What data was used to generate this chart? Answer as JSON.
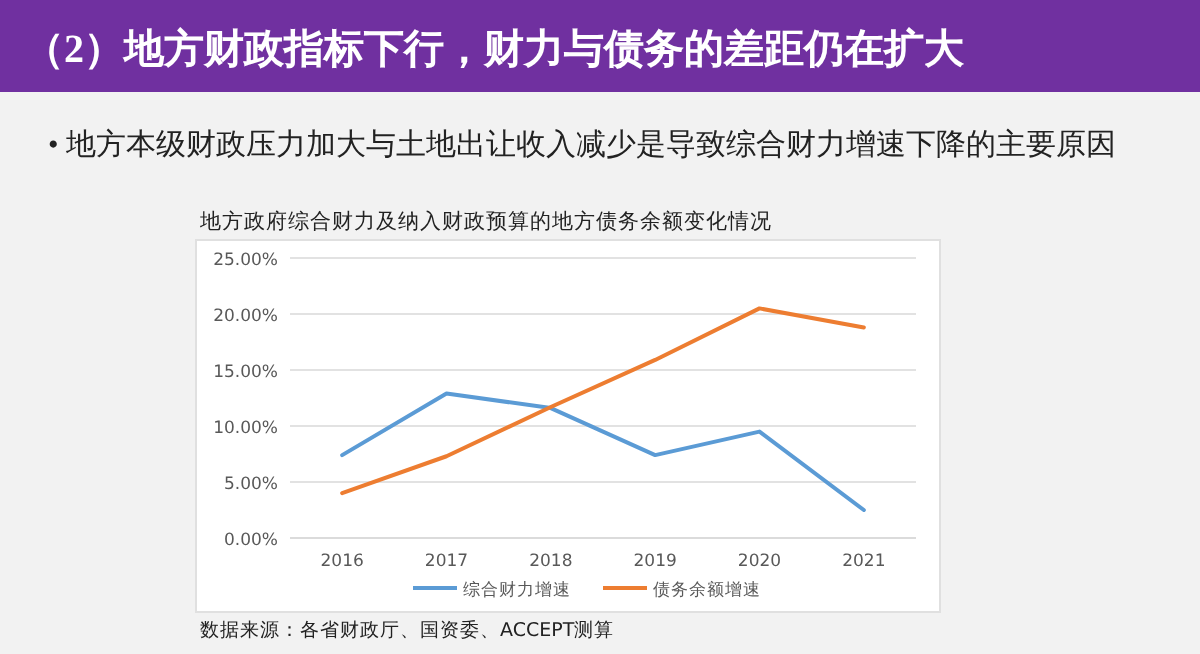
{
  "chart_data": {
    "type": "line",
    "title": "地方政府综合财力及纳入财政预算的地方债务余额变化情况",
    "annotations": [
      "（2）地方财政指标下行，财力与债务的差距仍在扩大",
      "• 地方本级财政压力加大与土地出让收入减少是导致综合财力增速下降的主要原因",
      "数据来源：各省财政厅、国资委、ACCEPT测算"
    ],
    "categories": [
      "2016",
      "2017",
      "2018",
      "2019",
      "2020",
      "2021"
    ],
    "series": [
      {
        "name": "综合财力增速",
        "color": "#5b9bd5",
        "values": [
          7.4,
          12.9,
          11.6,
          7.4,
          9.5,
          2.5
        ]
      },
      {
        "name": "债务余额增速",
        "color": "#ed7d31",
        "values": [
          4.0,
          7.3,
          11.7,
          15.9,
          20.5,
          18.8
        ]
      }
    ],
    "ylim": [
      0,
      25
    ],
    "yticks": [
      {
        "value": 0,
        "label": "0.00%"
      },
      {
        "value": 5,
        "label": "5.00%"
      },
      {
        "value": 10,
        "label": "10.00%"
      },
      {
        "value": 15,
        "label": "15.00%"
      },
      {
        "value": 20,
        "label": "20.00%"
      },
      {
        "value": 25,
        "label": "25.00%"
      }
    ],
    "grid": "y",
    "legend": "bottom",
    "marker": "none",
    "line_style": "solid"
  }
}
